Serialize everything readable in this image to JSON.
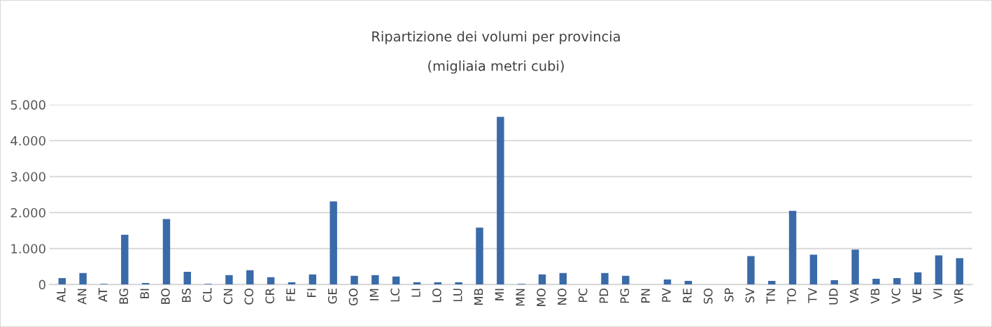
{
  "chart_data": {
    "type": "bar",
    "title": "Ripartizione dei volumi per provincia",
    "subtitle": "(migliaia metri cubi)",
    "categories": [
      "AL",
      "AN",
      "AT",
      "BG",
      "BI",
      "BO",
      "BS",
      "CL",
      "CN",
      "CO",
      "CR",
      "FE",
      "FI",
      "GE",
      "GO",
      "IM",
      "LC",
      "LI",
      "LO",
      "LU",
      "MB",
      "MI",
      "MN",
      "MO",
      "NO",
      "PC",
      "PD",
      "PG",
      "PN",
      "PV",
      "RE",
      "SO",
      "SP",
      "SV",
      "TN",
      "TO",
      "TV",
      "UD",
      "VA",
      "VB",
      "VC",
      "VE",
      "VI",
      "VR"
    ],
    "values": [
      180,
      320,
      20,
      1380,
      40,
      1820,
      355,
      20,
      260,
      395,
      200,
      60,
      280,
      2310,
      240,
      260,
      220,
      60,
      60,
      60,
      1580,
      4660,
      20,
      280,
      320,
      0,
      320,
      240,
      0,
      140,
      100,
      0,
      0,
      790,
      100,
      2050,
      830,
      120,
      970,
      160,
      180,
      340,
      810,
      730
    ],
    "color": "#3a6aa8",
    "ylim": [
      0,
      5000
    ],
    "yticks": [
      0,
      {
        "value": 1000,
        "label": "1.000"
      },
      {
        "value": 2000,
        "label": "2.000"
      },
      {
        "value": 3000,
        "label": "3.000"
      },
      {
        "value": 4000,
        "label": "4.000"
      },
      {
        "value": 5000,
        "label": "5.000"
      }
    ],
    "grid": "y"
  }
}
